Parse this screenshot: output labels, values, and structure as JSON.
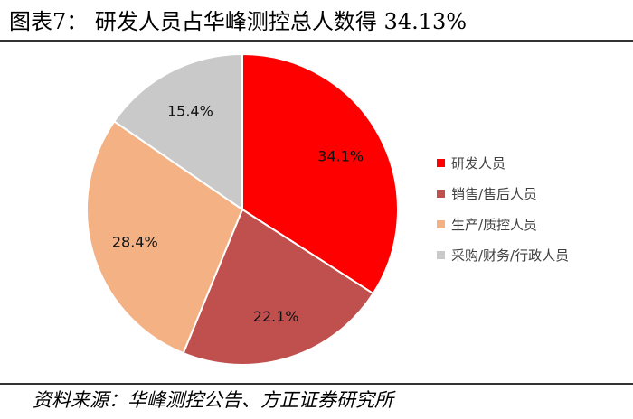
{
  "title": "图表7：  研发人员占华峰测控总人数得 34.13%",
  "source": "资料来源：华峰测控公告、方正证券研究所",
  "chart_data": {
    "type": "pie",
    "title": "研发人员占华峰测控总人数得 34.13%",
    "categories": [
      "研发人员",
      "销售/售后人员",
      "生产/质控人员",
      "采购/财务/行政人员"
    ],
    "values": [
      34.1,
      22.1,
      28.4,
      15.4
    ],
    "labels": [
      "34.1%",
      "22.1%",
      "28.4%",
      "15.4%"
    ],
    "colors": [
      "#FF0000",
      "#C0504D",
      "#F4B183",
      "#C9C9C9"
    ],
    "start_angle_deg": 0,
    "direction": "clockwise",
    "legend_position": "right"
  }
}
